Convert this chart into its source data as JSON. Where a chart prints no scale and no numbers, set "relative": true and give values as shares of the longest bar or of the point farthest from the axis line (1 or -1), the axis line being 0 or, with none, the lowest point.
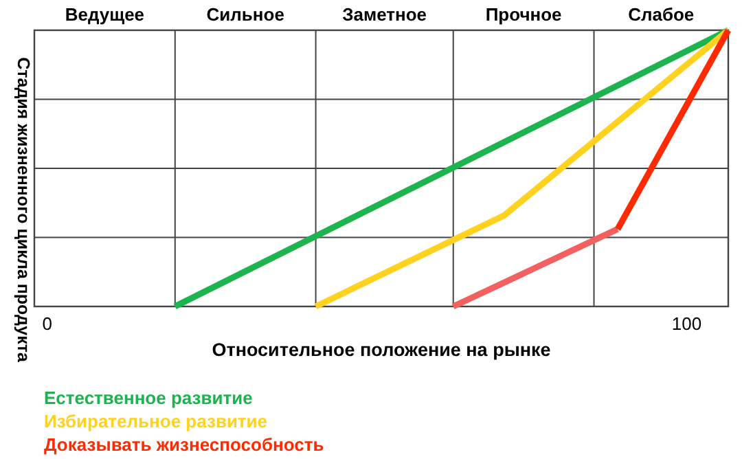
{
  "chart_data": {
    "type": "line",
    "relative": true,
    "xlabel": "Относительное положение на рынке",
    "ylabel": "Стадия жизненного цикла продукта",
    "xlim": [
      -2,
      106.5
    ],
    "xticks": [
      0,
      100
    ],
    "ref_lines": [
      {
        "axis": "x",
        "value": 20
      },
      {
        "axis": "x",
        "value": 42
      },
      {
        "axis": "x",
        "value": 63.5
      },
      {
        "axis": "x",
        "value": 85.5
      }
    ],
    "annotations": [
      "Ведущее",
      "Сильное",
      "Заметное",
      "Прочное",
      "Слабое"
    ],
    "grid": true,
    "legend": "bottom",
    "line_style": "solid",
    "series": [
      {
        "name": "Естественное развитие",
        "color": "#1db34f",
        "x": [
          20,
          106.5
        ],
        "values": [
          0,
          1
        ]
      },
      {
        "name": "Избирательное развитие",
        "color": "#ffd21f",
        "x": [
          42,
          71.5,
          106.5
        ],
        "values": [
          0,
          0.33,
          1
        ]
      },
      {
        "color": "#f26060",
        "x": [
          63.5,
          89.2
        ],
        "values": [
          0,
          0.28
        ]
      },
      {
        "name": "Доказывать жизнеспособность",
        "color": "#ff2a00",
        "x": [
          89.2,
          106.5
        ],
        "values": [
          0.28,
          1
        ]
      }
    ]
  }
}
